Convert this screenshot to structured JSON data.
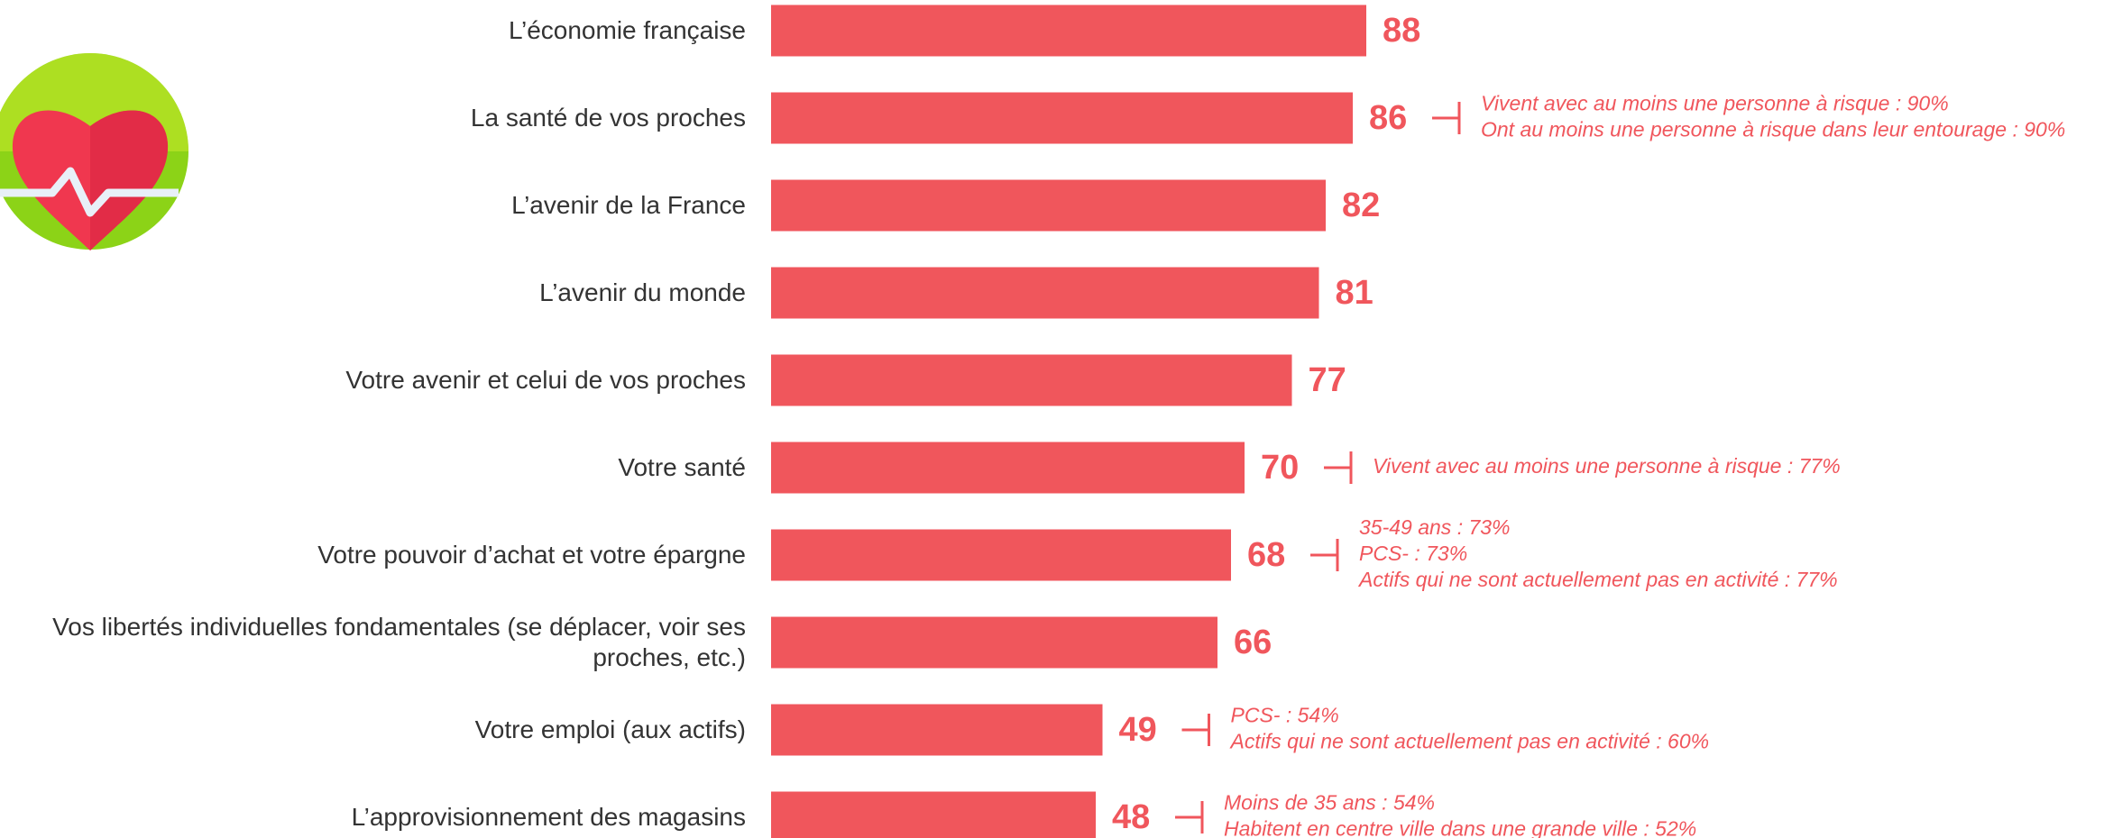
{
  "chart_data": {
    "type": "bar",
    "orientation": "horizontal",
    "color": "#f0565c",
    "categories": [
      "L’économie française",
      "La santé de vos proches",
      "L’avenir de la France",
      "L’avenir du monde",
      "Votre avenir et celui de vos proches",
      "Votre santé",
      "Votre pouvoir d’achat et votre épargne",
      "Vos libertés individuelles fondamentales (se déplacer, voir ses proches, etc.)",
      "Votre emploi (aux actifs)",
      "L’approvisionnement des magasins"
    ],
    "values": [
      88,
      86,
      82,
      81,
      77,
      70,
      68,
      66,
      49,
      48
    ],
    "annotations": [
      null,
      [
        "Vivent avec au moins une personne à risque : 90%",
        "Ont au moins une personne à risque dans leur entourage : 90%"
      ],
      null,
      null,
      null,
      [
        "Vivent avec au moins une personne à risque : 77%"
      ],
      [
        "35-49 ans : 73%",
        "PCS- : 73%",
        "Actifs qui ne sont actuellement pas en activité : 77%"
      ],
      null,
      [
        "PCS- : 54%",
        "Actifs qui ne sont actuellement pas en activité : 60%"
      ],
      [
        "Moins de 35 ans : 54%",
        "Habitent en centre ville dans une grande ville : 52%"
      ]
    ]
  }
}
